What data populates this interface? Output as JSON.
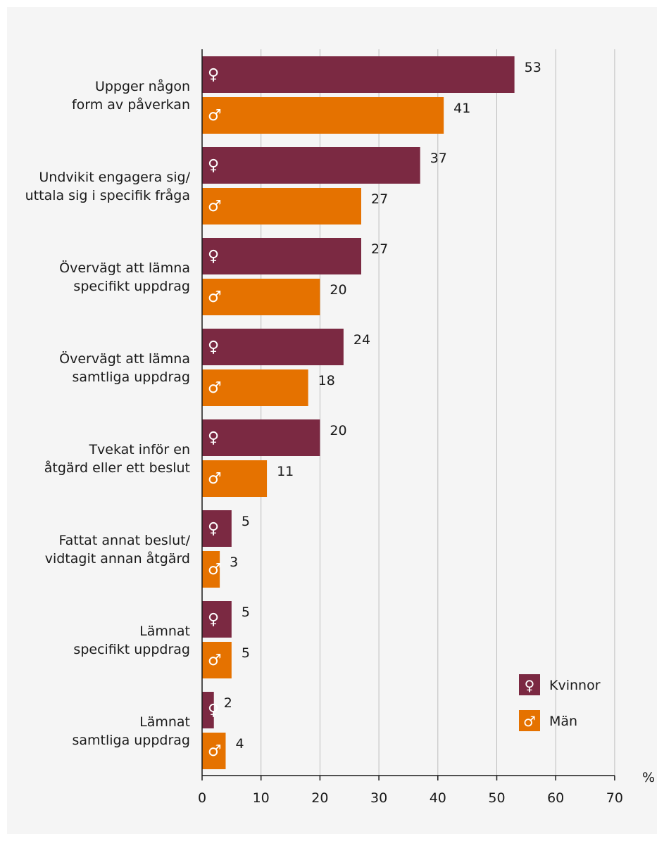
{
  "chart_data": {
    "type": "bar",
    "orientation": "horizontal",
    "categories": [
      [
        "Uppger någon",
        "form av påverkan"
      ],
      [
        "Undvikit engagera sig/",
        "uttala sig i specifik fråga"
      ],
      [
        "Övervägt att lämna",
        "specifikt uppdrag"
      ],
      [
        "Övervägt att lämna",
        "samtliga uppdrag"
      ],
      [
        "Tvekat inför en",
        "åtgärd eller ett beslut"
      ],
      [
        "Fattat annat beslut/",
        "vidtagit annan åtgärd"
      ],
      [
        "Lämnat",
        "specifikt uppdrag"
      ],
      [
        "Lämnat",
        "samtliga uppdrag"
      ]
    ],
    "series": [
      {
        "name": "Kvinnor",
        "symbol": "♀",
        "color": "#7b2942",
        "values": [
          53,
          37,
          27,
          24,
          20,
          5,
          5,
          2
        ]
      },
      {
        "name": "Män",
        "symbol": "♂",
        "color": "#e57200",
        "values": [
          41,
          27,
          20,
          18,
          11,
          3,
          5,
          4
        ]
      }
    ],
    "xlim": [
      0,
      70
    ],
    "xticks": [
      "0",
      "10",
      "20",
      "30",
      "40",
      "50",
      "60",
      "70"
    ],
    "xunit": "%",
    "grid": true,
    "legend_position": "bottom-right"
  }
}
